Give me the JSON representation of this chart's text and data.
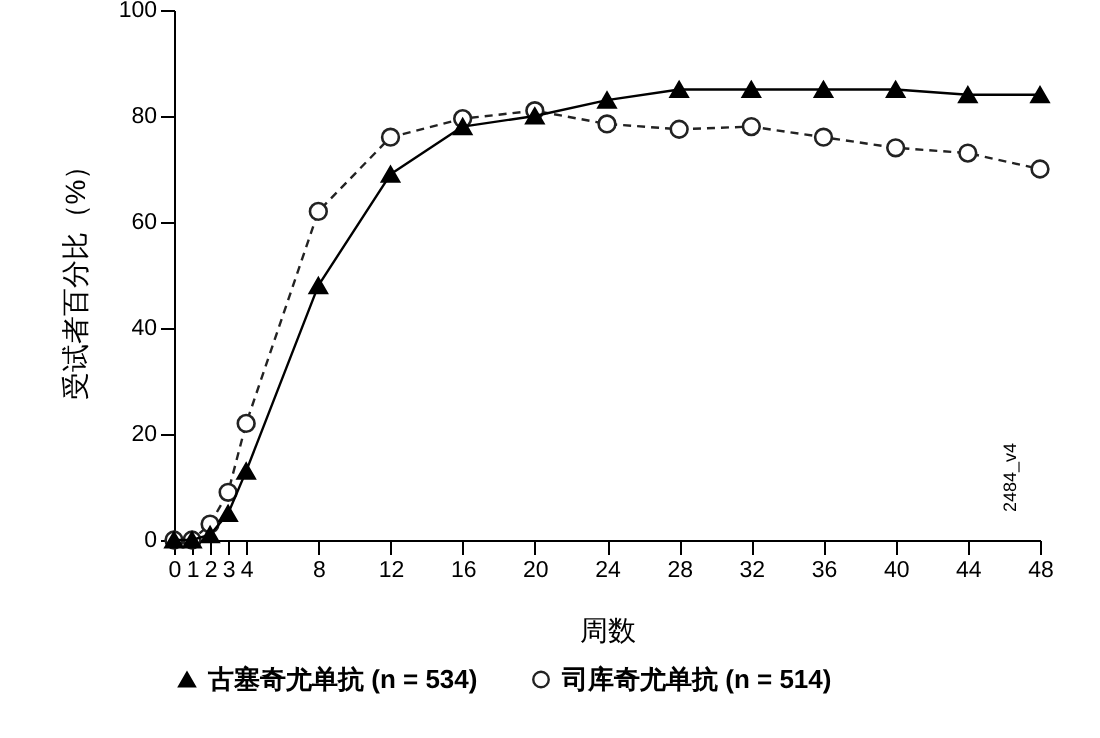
{
  "chart_data": {
    "type": "line",
    "xlabel": "周数",
    "ylabel": "受试者百分比（%）",
    "x": [
      0,
      1,
      2,
      3,
      4,
      8,
      12,
      16,
      20,
      24,
      28,
      32,
      36,
      40,
      44,
      48
    ],
    "series": [
      {
        "name": "古塞奇尤单抗 (n = 534)",
        "color": "#000000",
        "marker": "triangle",
        "line_style": "solid",
        "values": [
          0,
          0,
          1,
          5,
          13,
          48,
          69,
          78,
          80,
          83,
          85,
          85,
          85,
          85,
          84,
          84
        ]
      },
      {
        "name": "司库奇尤单抗 (n = 514)",
        "color": "#222222",
        "marker": "circle",
        "line_style": "dashed",
        "values": [
          0,
          0,
          3,
          9,
          22,
          62,
          76,
          79.5,
          81,
          78.5,
          77.5,
          78,
          76,
          74,
          73,
          70
        ]
      }
    ],
    "xlim": [
      0,
      48
    ],
    "xticks": [
      0,
      1,
      2,
      3,
      4,
      8,
      12,
      16,
      20,
      24,
      28,
      32,
      36,
      40,
      44,
      48
    ],
    "ylim": [
      0,
      100
    ],
    "yticks": [
      0,
      20,
      40,
      60,
      80,
      100
    ],
    "grid": false,
    "legend": "bottom",
    "annotations": [
      "2484_v4"
    ]
  }
}
